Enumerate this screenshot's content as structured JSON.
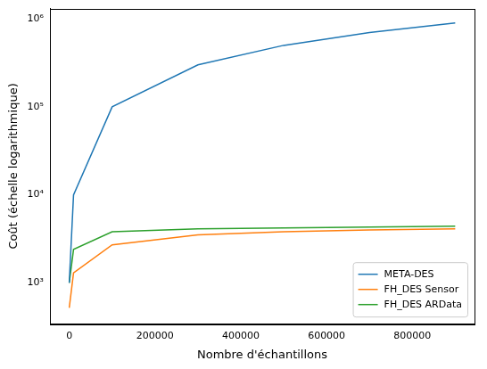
{
  "chart_data": {
    "type": "line",
    "x_label": "Nombre d'échantillons",
    "y_label": "Coût (échelle logarithmique)",
    "x": [
      0,
      10000,
      100000,
      300000,
      500000,
      700000,
      900000
    ],
    "series": [
      {
        "name": "META-DES",
        "color": "#1f77b4",
        "values": [
          1000,
          10000,
          100000,
          300000,
          500000,
          700000,
          900000
        ]
      },
      {
        "name": "FH_DES Sensor",
        "color": "#ff7f0e",
        "values": [
          520,
          1300,
          2700,
          3500,
          3800,
          4000,
          4100
        ]
      },
      {
        "name": "FH_DES ARData",
        "color": "#2ca02c",
        "values": [
          1000,
          2400,
          3800,
          4100,
          4200,
          4300,
          4400
        ]
      }
    ],
    "xlim": [
      -45000,
      945000
    ],
    "xticks": [
      0,
      200000,
      400000,
      600000,
      800000
    ],
    "ylim": [
      343,
      1310000
    ],
    "yticks": [
      {
        "value": 1000,
        "label": "10³"
      },
      {
        "value": 10000,
        "label": "10⁴"
      },
      {
        "value": 100000,
        "label": "10⁵"
      },
      {
        "value": 1000000,
        "label": "10⁶"
      }
    ],
    "log": "y",
    "grid": false,
    "legend": "lower right"
  }
}
